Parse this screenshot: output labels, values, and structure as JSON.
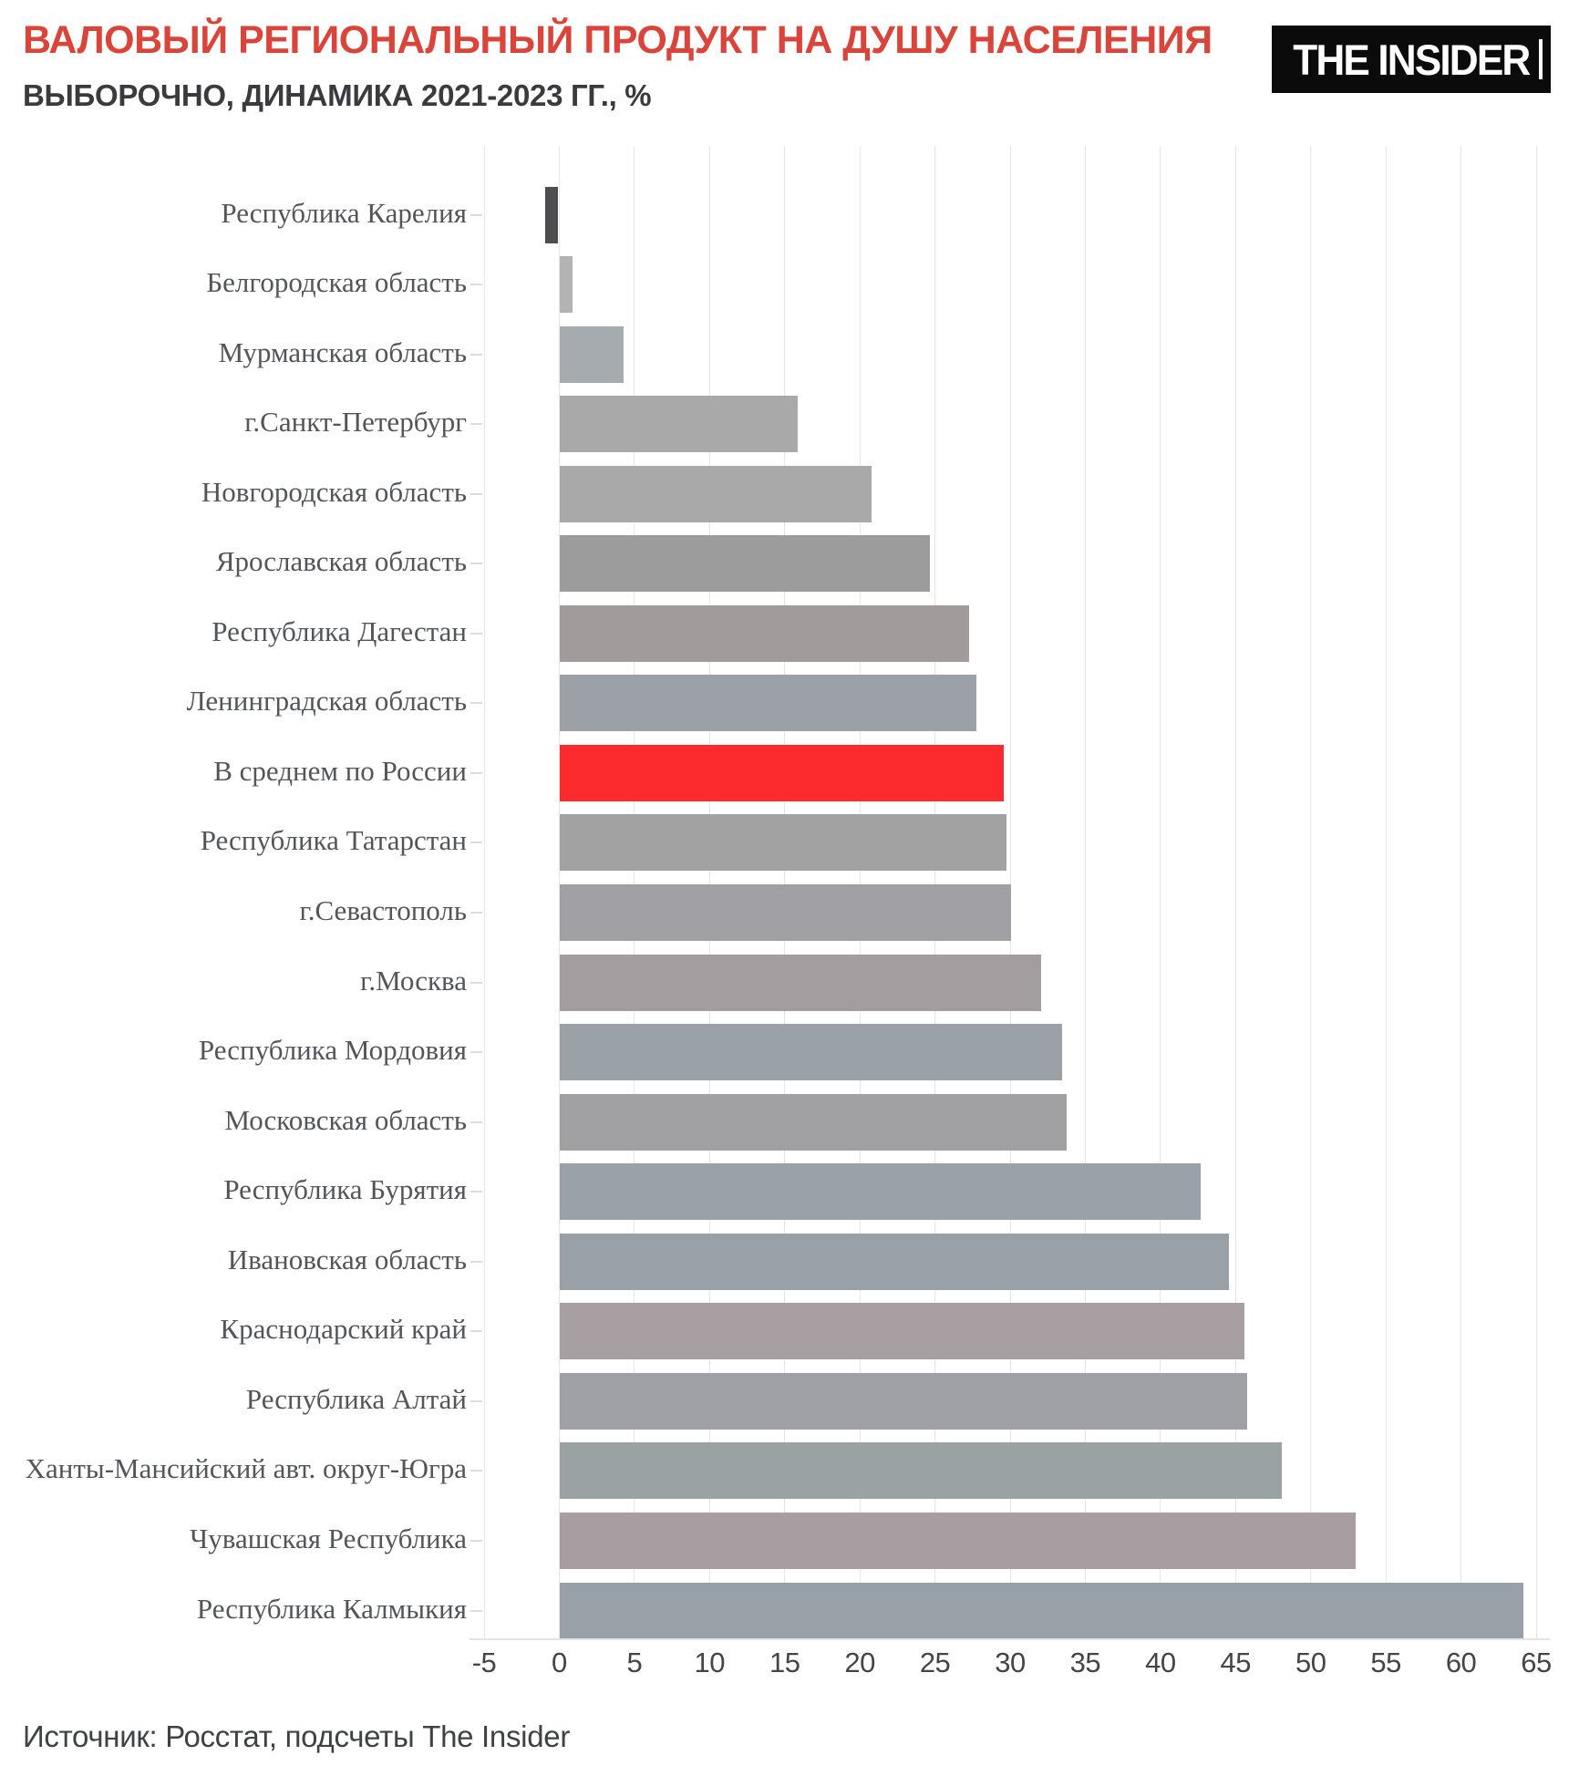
{
  "header": {
    "title": "ВАЛОВЫЙ РЕГИОНАЛЬНЫЙ ПРОДУКТ НА ДУШУ НАСЕЛЕНИЯ",
    "subtitle": "ВЫБОРОЧНО, ДИНАМИКА 2021-2023 ГГ., %",
    "logo_text": "THE INSIDER"
  },
  "footer": {
    "source": "Источник: Росстат, подсчеты The Insider"
  },
  "colors": {
    "title": "#d9453a",
    "subtitle": "#3a3b3e",
    "highlight_bar": "#fb2a2d",
    "negative_bar": "#4e4e50",
    "default_bar": "#a1a1a4",
    "gridline": "#e7e7e7",
    "category_label": "#53555a"
  },
  "chart_data": {
    "type": "bar",
    "orientation": "horizontal",
    "title": "ВАЛОВЫЙ РЕГИОНАЛЬНЫЙ ПРОДУКТ НА ДУШУ НАСЕЛЕНИЯ",
    "subtitle": "ВЫБОРОЧНО, ДИНАМИКА 2021-2023 ГГ., %",
    "xlabel": "",
    "ylabel": "",
    "xlim": [
      -5,
      65
    ],
    "xticks": [
      -5,
      0,
      5,
      10,
      15,
      20,
      25,
      30,
      35,
      40,
      45,
      50,
      55,
      60,
      65
    ],
    "grid": true,
    "legend": false,
    "highlight_index": 8,
    "categories": [
      "Республика Карелия",
      "Белгородская область",
      "Мурманская область",
      "г.Санкт-Петербург",
      "Новгородская область",
      "Ярославская область",
      "Республика Дагестан",
      "Ленинградская область",
      "В среднем по России",
      "Республика Татарстан",
      "г.Севастополь",
      "г.Москва",
      "Республика Мордовия",
      "Московская область",
      "Республика Бурятия",
      "Ивановская область",
      "Краснодарский край",
      "Республика Алтай",
      "Ханты-Мансийский авт. округ-Югра",
      "Чувашская Республика",
      "Республика Калмыкия"
    ],
    "values": [
      -0.9,
      0.8,
      4.2,
      15.8,
      20.7,
      24.6,
      27.2,
      27.7,
      29.5,
      29.7,
      30.0,
      32.0,
      33.4,
      33.7,
      42.6,
      44.5,
      45.5,
      45.7,
      48.0,
      52.9,
      64.1
    ],
    "bar_colors": [
      "#4e4e50",
      "#b3b3b3",
      "#a6abb0",
      "#a9a9a9",
      "#a9a9a9",
      "#9c9c9c",
      "#a29b9b",
      "#9ba1a7",
      "#fb2a2d",
      "#a2a2a2",
      "#a1a1a5",
      "#a39da0",
      "#9aa1a7",
      "#a1a1a3",
      "#99a1a9",
      "#98a1a7",
      "#a89fa2",
      "#a0a1a7",
      "#9aa2a4",
      "#a89ea1",
      "#98a1a7"
    ]
  }
}
